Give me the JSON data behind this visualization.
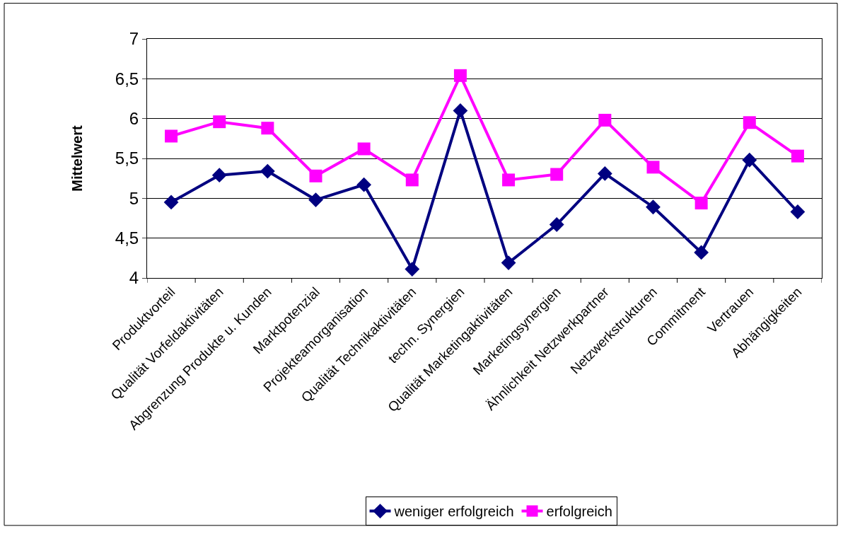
{
  "chart_data": {
    "type": "line",
    "ylabel": "Mittelwert",
    "categories": [
      "Produktvorteil",
      "Qualität Vorfeldaktivitäten",
      "Abgrenzung Produkte u. Kunden",
      "Marktpotenzial",
      "Projekteamorganisation",
      "Qualität Technikaktivitäten",
      "techn. Synergien",
      "Qualität Marketingaktivitäten",
      "Marketingsynergien",
      "Ähnlichkeit Netzwerkpartner",
      "Netzwerkstrukturen",
      "Commitment",
      "Vertrauen",
      "Abhängigkeiten"
    ],
    "series": [
      {
        "name": "weniger erfolgreich",
        "color": "#000080",
        "marker": "diamond",
        "values": [
          4.95,
          5.29,
          5.34,
          4.98,
          5.17,
          4.11,
          6.1,
          4.19,
          4.67,
          5.31,
          4.89,
          4.32,
          5.48,
          4.83
        ]
      },
      {
        "name": "erfolgreich",
        "color": "#ff00ff",
        "marker": "square",
        "values": [
          5.78,
          5.96,
          5.88,
          5.28,
          5.62,
          5.23,
          6.54,
          5.23,
          5.3,
          5.98,
          5.39,
          4.94,
          5.95,
          5.53
        ]
      }
    ],
    "ylim": [
      4,
      7
    ],
    "yticks": [
      {
        "value": 4,
        "label": "4"
      },
      {
        "value": 4.5,
        "label": "4,5"
      },
      {
        "value": 5,
        "label": "5"
      },
      {
        "value": 5.5,
        "label": "5,5"
      },
      {
        "value": 6,
        "label": "6"
      },
      {
        "value": 6.5,
        "label": "6,5"
      },
      {
        "value": 7,
        "label": "7"
      }
    ],
    "grid": "y",
    "legend": "bottom",
    "line_style": "solid"
  }
}
